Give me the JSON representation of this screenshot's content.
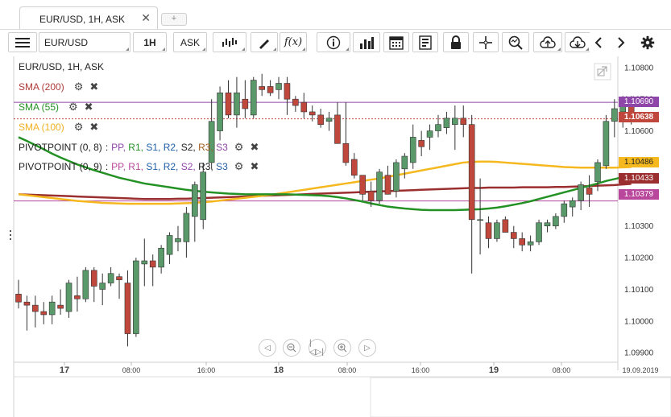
{
  "tabs": [
    {
      "label": "EUR/USD, 1H, ASK"
    }
  ],
  "tab_add": "+",
  "toolbar": {
    "symbol": "EUR/USD",
    "timeframe": "1H",
    "price_side": "ASK",
    "icons": [
      "menu-icon",
      "candles-icon",
      "draw-icon",
      "fx-icon",
      "info-icon",
      "volume-icon",
      "calendar-icon",
      "report-icon",
      "lock-icon",
      "crosshair-icon",
      "zoom-icon",
      "upload-icon",
      "download-icon",
      "prev-icon",
      "next-icon",
      "settings-icon"
    ]
  },
  "legend": {
    "title": "EUR/USD, 1H, ASK",
    "sma200": "SMA (200)",
    "sma55": "SMA (55)",
    "sma100": "SMA (100)",
    "pivot1_label": "PIVOTPOINT (0, 8)",
    "pivot2_label": "PIVOTPOINT (0, 9)",
    "pivot_sep": ":",
    "pivot_levels": [
      "PP,",
      "R1,",
      "S1,",
      "R2,",
      "S2,",
      "R3,",
      "S3"
    ]
  },
  "colors": {
    "up": "#5a9a6a",
    "down": "#c0473c",
    "sma200": "#9b2f2f",
    "sma55": "#239123",
    "sma100": "#f5b81f",
    "purple": "#8f46a9",
    "pivot": "#b9479b"
  },
  "price_labels": {
    "current": "1.10638",
    "sma100": "1.10486",
    "sma200": "1.10433",
    "purple_line": "1.10690",
    "pivot_line": "1.10379"
  },
  "y_axis_ticks": [
    "1.10800",
    "1.10700",
    "1.10600",
    "1.10500",
    "1.10400",
    "1.10300",
    "1.10200",
    "1.10100",
    "1.10000",
    "1.09900"
  ],
  "x_axis_ticks": [
    {
      "label": "17",
      "bold": true
    },
    {
      "label": "08:00",
      "bold": false
    },
    {
      "label": "16:00",
      "bold": false
    },
    {
      "label": "18",
      "bold": true
    },
    {
      "label": "08:00",
      "bold": false
    },
    {
      "label": "16:00",
      "bold": false
    },
    {
      "label": "19",
      "bold": true
    },
    {
      "label": "08:00",
      "bold": false
    },
    {
      "label": "19.09.2019",
      "bold": false
    }
  ],
  "chart_data": {
    "type": "candlestick",
    "symbol": "EUR/USD",
    "interval": "1H",
    "ylim": [
      1.0987,
      1.1083
    ],
    "candles": [
      [
        1.10085,
        1.1013,
        1.1004,
        1.1006
      ],
      [
        1.1006,
        1.1008,
        1.0997,
        1.1005
      ],
      [
        1.1005,
        1.1008,
        1.0998,
        1.1003
      ],
      [
        1.1003,
        1.1006,
        1.0999,
        1.1002
      ],
      [
        1.1002,
        1.1008,
        1.0999,
        1.1006
      ],
      [
        1.1005,
        1.101,
        1.1002,
        1.1004
      ],
      [
        1.1003,
        1.1013,
        1.1001,
        1.1012
      ],
      [
        1.1008,
        1.1014,
        1.1003,
        1.1007
      ],
      [
        1.1007,
        1.1017,
        1.1006,
        1.1016
      ],
      [
        1.1016,
        1.1017,
        1.1006,
        1.1011
      ],
      [
        1.101,
        1.1015,
        1.1005,
        1.1012
      ],
      [
        1.1012,
        1.1017,
        1.1011,
        1.1015
      ],
      [
        1.1014,
        1.1015,
        1.1007,
        1.1013
      ],
      [
        1.1012,
        1.1016,
        1.0992,
        1.0996
      ],
      [
        1.0996,
        1.102,
        1.0995,
        1.1019
      ],
      [
        1.1018,
        1.1026,
        1.1011,
        1.1019
      ],
      [
        1.1019,
        1.1021,
        1.1011,
        1.1017
      ],
      [
        1.1017,
        1.1024,
        1.1015,
        1.1023
      ],
      [
        1.1021,
        1.1028,
        1.1018,
        1.1027
      ],
      [
        1.1025,
        1.103,
        1.1022,
        1.1026
      ],
      [
        1.1025,
        1.1036,
        1.102,
        1.1034
      ],
      [
        1.1033,
        1.1044,
        1.1025,
        1.1043
      ],
      [
        1.1032,
        1.105,
        1.1029,
        1.1047
      ],
      [
        1.105,
        1.107,
        1.1048,
        1.1063
      ],
      [
        1.106,
        1.1074,
        1.1057,
        1.1072
      ],
      [
        1.1072,
        1.1076,
        1.1064,
        1.1065
      ],
      [
        1.1065,
        1.1077,
        1.1061,
        1.1072
      ],
      [
        1.107,
        1.1076,
        1.1064,
        1.1067
      ],
      [
        1.1065,
        1.1077,
        1.1064,
        1.1076
      ],
      [
        1.1074,
        1.1078,
        1.1071,
        1.1073
      ],
      [
        1.1074,
        1.1076,
        1.1071,
        1.1072
      ],
      [
        1.1073,
        1.1077,
        1.107,
        1.1075
      ],
      [
        1.1075,
        1.1077,
        1.1065,
        1.107
      ],
      [
        1.107,
        1.1071,
        1.1066,
        1.1068
      ],
      [
        1.1069,
        1.1072,
        1.1064,
        1.1066
      ],
      [
        1.1066,
        1.1068,
        1.1063,
        1.1065
      ],
      [
        1.1065,
        1.1067,
        1.1061,
        1.1062
      ],
      [
        1.1063,
        1.1066,
        1.106,
        1.1064
      ],
      [
        1.1065,
        1.1069,
        1.1056,
        1.1056
      ],
      [
        1.1056,
        1.1069,
        1.1049,
        1.105
      ],
      [
        1.1051,
        1.1053,
        1.1045,
        1.1046
      ],
      [
        1.1046,
        1.1046,
        1.1038,
        1.104
      ],
      [
        1.1041,
        1.1044,
        1.1036,
        1.1038
      ],
      [
        1.1038,
        1.1048,
        1.1037,
        1.1047
      ],
      [
        1.1046,
        1.1049,
        1.104,
        1.104
      ],
      [
        1.1041,
        1.1051,
        1.1039,
        1.105
      ],
      [
        1.1048,
        1.1053,
        1.1045,
        1.1052
      ],
      [
        1.105,
        1.1062,
        1.1048,
        1.1058
      ],
      [
        1.1057,
        1.106,
        1.1052,
        1.1055
      ],
      [
        1.1058,
        1.1062,
        1.1054,
        1.106
      ],
      [
        1.106,
        1.1065,
        1.1058,
        1.1062
      ],
      [
        1.1061,
        1.1066,
        1.1059,
        1.1064
      ],
      [
        1.1062,
        1.1068,
        1.1054,
        1.1064
      ],
      [
        1.1064,
        1.1068,
        1.1058,
        1.1062
      ],
      [
        1.1062,
        1.1065,
        1.1015,
        1.1032
      ],
      [
        1.1032,
        1.1045,
        1.1021,
        1.1032
      ],
      [
        1.1031,
        1.1033,
        1.1023,
        1.1026
      ],
      [
        1.1026,
        1.1032,
        1.1025,
        1.1031
      ],
      [
        1.1032,
        1.1033,
        1.1028,
        1.1028
      ],
      [
        1.1028,
        1.103,
        1.1023,
        1.1026
      ],
      [
        1.1026,
        1.1028,
        1.1022,
        1.1024
      ],
      [
        1.1024,
        1.1027,
        1.1022,
        1.1025
      ],
      [
        1.1025,
        1.1032,
        1.1024,
        1.1031
      ],
      [
        1.103,
        1.1032,
        1.1028,
        1.1031
      ],
      [
        1.103,
        1.1034,
        1.1029,
        1.1033
      ],
      [
        1.1033,
        1.1038,
        1.1031,
        1.1037
      ],
      [
        1.1036,
        1.1039,
        1.1033,
        1.1038
      ],
      [
        1.1038,
        1.1044,
        1.1035,
        1.1043
      ],
      [
        1.1042,
        1.1046,
        1.1036,
        1.104
      ],
      [
        1.1044,
        1.1051,
        1.1041,
        1.105
      ],
      [
        1.1049,
        1.1065,
        1.1048,
        1.1063
      ],
      [
        1.1063,
        1.107,
        1.1058,
        1.1067
      ],
      [
        1.1066,
        1.1071,
        1.1061,
        1.107
      ],
      [
        1.1068,
        1.1071,
        1.1062,
        1.1064
      ]
    ],
    "sma55": [
      1.1058,
      1.10568,
      1.10555,
      1.10542,
      1.10528,
      1.10516,
      1.10505,
      1.10494,
      1.10485,
      1.10476,
      1.10468,
      1.1046,
      1.10452,
      1.10446,
      1.1044,
      1.10434,
      1.1043,
      1.10426,
      1.10422,
      1.10418,
      1.10414,
      1.10411,
      1.10408,
      1.10406,
      1.10404,
      1.10402,
      1.10401,
      1.104,
      1.104,
      1.104,
      1.104,
      1.104,
      1.104,
      1.10399,
      1.10398,
      1.10397,
      1.10396,
      1.10394,
      1.10391,
      1.10387,
      1.10382,
      1.10377,
      1.10371,
      1.10366,
      1.10361,
      1.10358,
      1.10355,
      1.10353,
      1.10351,
      1.1035,
      1.1035,
      1.1035,
      1.1035,
      1.10351,
      1.10352,
      1.10353,
      1.10355,
      1.10358,
      1.10362,
      1.10367,
      1.10372,
      1.10378,
      1.10385,
      1.10392,
      1.10399,
      1.10406,
      1.10413,
      1.1042,
      1.10427,
      1.10434,
      1.10442,
      1.10448,
      1.10454,
      1.10458
    ],
    "sma100": [
      1.104,
      1.10397,
      1.10394,
      1.10391,
      1.10388,
      1.10385,
      1.10382,
      1.10379,
      1.10377,
      1.10375,
      1.10373,
      1.10372,
      1.10371,
      1.1037,
      1.1037,
      1.1037,
      1.1037,
      1.1037,
      1.1037,
      1.10371,
      1.10372,
      1.10373,
      1.10375,
      1.10377,
      1.1038,
      1.10383,
      1.10386,
      1.10389,
      1.10392,
      1.10395,
      1.10398,
      1.10402,
      1.10406,
      1.1041,
      1.10414,
      1.10418,
      1.10422,
      1.10426,
      1.1043,
      1.10434,
      1.10438,
      1.10442,
      1.10446,
      1.1045,
      1.10455,
      1.1046,
      1.10465,
      1.1047,
      1.10475,
      1.1048,
      1.10485,
      1.1049,
      1.10495,
      1.105,
      1.10502,
      1.10503,
      1.10503,
      1.10502,
      1.105,
      1.10498,
      1.10496,
      1.10494,
      1.10492,
      1.1049,
      1.10488,
      1.10486,
      1.10485,
      1.10484,
      1.10484,
      1.10484,
      1.10484,
      1.10484,
      1.10485,
      1.10486
    ],
    "sma200": [
      1.104,
      1.10399,
      1.10398,
      1.10397,
      1.10396,
      1.10395,
      1.10394,
      1.10393,
      1.10392,
      1.10391,
      1.1039,
      1.10389,
      1.10388,
      1.10387,
      1.10386,
      1.10385,
      1.10385,
      1.10385,
      1.10385,
      1.10386,
      1.10386,
      1.10387,
      1.10388,
      1.10389,
      1.1039,
      1.10391,
      1.10392,
      1.10393,
      1.10394,
      1.10395,
      1.10396,
      1.10397,
      1.10398,
      1.10399,
      1.104,
      1.10401,
      1.10402,
      1.10403,
      1.10404,
      1.10405,
      1.10406,
      1.10407,
      1.10408,
      1.10409,
      1.1041,
      1.10411,
      1.10412,
      1.10413,
      1.10414,
      1.10415,
      1.10416,
      1.10417,
      1.10418,
      1.10419,
      1.1042,
      1.1042,
      1.10421,
      1.10421,
      1.10421,
      1.10421,
      1.10422,
      1.10422,
      1.10422,
      1.10422,
      1.10423,
      1.10423,
      1.10424,
      1.10425,
      1.10426,
      1.10427,
      1.10428,
      1.10429,
      1.10431,
      1.10433
    ],
    "horizontal_lines": [
      {
        "name": "purple-level",
        "value": 1.1069
      },
      {
        "name": "current-price",
        "value": 1.10638
      },
      {
        "name": "pivot-level",
        "value": 1.10379
      }
    ]
  }
}
